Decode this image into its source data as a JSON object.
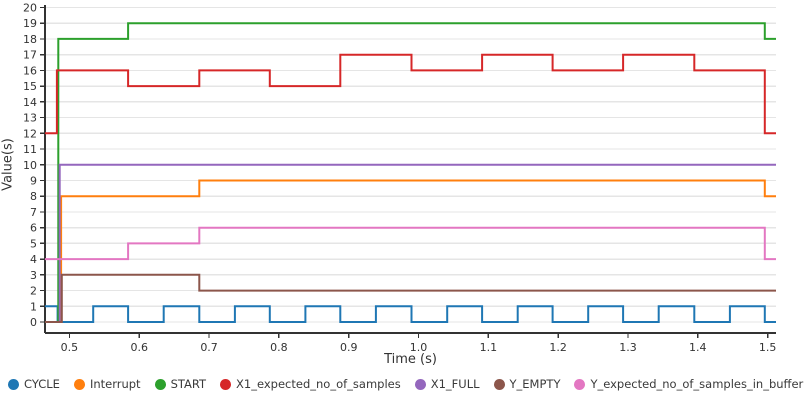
{
  "chart_data": {
    "type": "line",
    "line_style": "step-after",
    "title": "",
    "xlabel": "Time (s)",
    "ylabel": "Value(s)",
    "xlim": [
      0.465,
      1.512
    ],
    "ylim": [
      0,
      20
    ],
    "grid": "horizontal-only",
    "legend_position": "bottom",
    "axis_color": "#333333",
    "grid_color": "#e5e5e5",
    "xticks": [
      {
        "v": 0.5,
        "label": "0.5"
      },
      {
        "v": 0.6,
        "label": "0.6"
      },
      {
        "v": 0.7,
        "label": "0.7"
      },
      {
        "v": 0.8,
        "label": "0.8"
      },
      {
        "v": 0.9,
        "label": "0.9"
      },
      {
        "v": 1.0,
        "label": "1.0"
      },
      {
        "v": 1.1,
        "label": "1.1"
      },
      {
        "v": 1.2,
        "label": "1.2"
      },
      {
        "v": 1.3,
        "label": "1.3"
      },
      {
        "v": 1.4,
        "label": "1.4"
      },
      {
        "v": 1.5,
        "label": "1.5"
      }
    ],
    "yticks": [
      {
        "v": 0,
        "label": "0"
      },
      {
        "v": 1,
        "label": "1"
      },
      {
        "v": 2,
        "label": "2"
      },
      {
        "v": 3,
        "label": "3"
      },
      {
        "v": 4,
        "label": "4"
      },
      {
        "v": 5,
        "label": "5"
      },
      {
        "v": 6,
        "label": "6"
      },
      {
        "v": 7,
        "label": "7"
      },
      {
        "v": 8,
        "label": "8"
      },
      {
        "v": 9,
        "label": "9"
      },
      {
        "v": 10,
        "label": "10"
      },
      {
        "v": 11,
        "label": "11"
      },
      {
        "v": 12,
        "label": "12"
      },
      {
        "v": 13,
        "label": "13"
      },
      {
        "v": 14,
        "label": "14"
      },
      {
        "v": 15,
        "label": "15"
      },
      {
        "v": 16,
        "label": "16"
      },
      {
        "v": 17,
        "label": "17"
      },
      {
        "v": 18,
        "label": "18"
      },
      {
        "v": 19,
        "label": "19"
      },
      {
        "v": 20,
        "label": "20"
      }
    ],
    "series": [
      {
        "name": "CYCLE",
        "color": "#1f77b4",
        "points": [
          [
            0.465,
            1
          ],
          [
            0.483,
            0
          ],
          [
            0.534,
            1
          ],
          [
            0.584,
            0
          ],
          [
            0.635,
            1
          ],
          [
            0.686,
            0
          ],
          [
            0.737,
            1
          ],
          [
            0.787,
            0
          ],
          [
            0.838,
            1
          ],
          [
            0.888,
            0
          ],
          [
            0.939,
            1
          ],
          [
            0.99,
            0
          ],
          [
            1.041,
            1
          ],
          [
            1.091,
            0
          ],
          [
            1.142,
            1
          ],
          [
            1.192,
            0
          ],
          [
            1.243,
            1
          ],
          [
            1.293,
            0
          ],
          [
            1.344,
            1
          ],
          [
            1.395,
            0
          ],
          [
            1.446,
            1
          ],
          [
            1.496,
            0
          ]
        ]
      },
      {
        "name": "Interrupt",
        "color": "#ff7f0e",
        "points": [
          [
            0.465,
            0
          ],
          [
            0.488,
            8
          ],
          [
            0.686,
            9
          ],
          [
            1.496,
            8
          ]
        ]
      },
      {
        "name": "START",
        "color": "#2ca02c",
        "points": [
          [
            0.465,
            0
          ],
          [
            0.484,
            18
          ],
          [
            0.584,
            19
          ],
          [
            1.496,
            18
          ]
        ]
      },
      {
        "name": "X1_expected_no_of_samples",
        "color": "#d62728",
        "points": [
          [
            0.465,
            12
          ],
          [
            0.482,
            16
          ],
          [
            0.584,
            15
          ],
          [
            0.686,
            16
          ],
          [
            0.787,
            15
          ],
          [
            0.888,
            17
          ],
          [
            0.99,
            16
          ],
          [
            1.091,
            17
          ],
          [
            1.192,
            16
          ],
          [
            1.293,
            17
          ],
          [
            1.395,
            16
          ],
          [
            1.496,
            12
          ]
        ]
      },
      {
        "name": "X1_FULL",
        "color": "#9467bd",
        "points": [
          [
            0.465,
            0
          ],
          [
            0.486,
            10
          ]
        ]
      },
      {
        "name": "Y_EMPTY",
        "color": "#8c564b",
        "points": [
          [
            0.465,
            0
          ],
          [
            0.489,
            3
          ],
          [
            0.686,
            2
          ]
        ]
      },
      {
        "name": "Y_expected_no_of_samples_in_buffer",
        "color": "#e377c2",
        "points": [
          [
            0.465,
            4
          ],
          [
            0.584,
            5
          ],
          [
            0.686,
            6
          ],
          [
            1.496,
            4
          ]
        ]
      }
    ]
  }
}
